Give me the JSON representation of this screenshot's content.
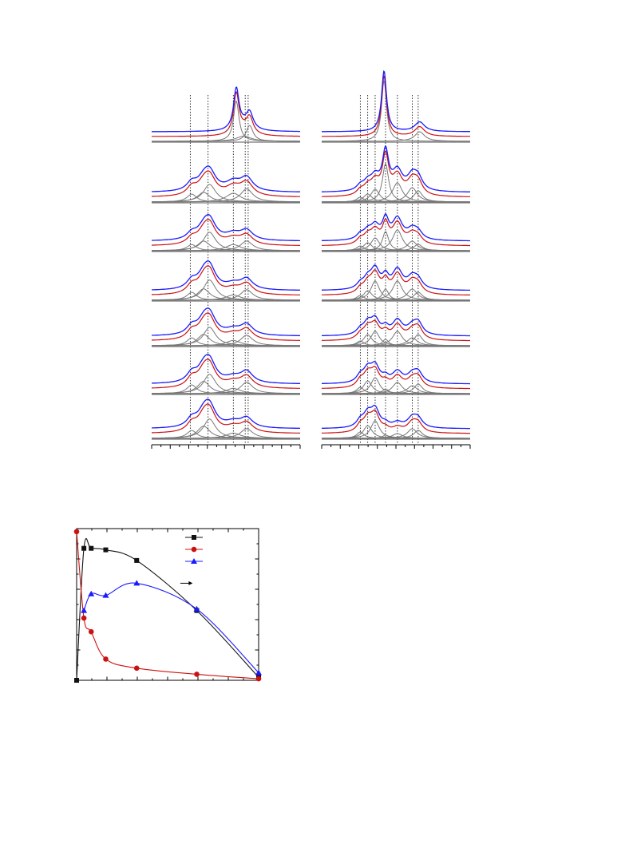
{
  "page": {
    "background": "#ffffff"
  },
  "colors": {
    "fit_envelope": "#1a1aff",
    "experimental": "#cc1111",
    "components": "#777777",
    "guide_lines": "#000000",
    "series": [
      "#111111",
      "#cc1111",
      "#1a1aff"
    ]
  },
  "chart_data": [
    {
      "type": "line",
      "panel": "left",
      "grid": false,
      "xlim": [
        0,
        100
      ],
      "ylim": [
        0,
        8
      ],
      "curves": [
        "fit_envelope",
        "experimental",
        "components"
      ],
      "marker_lines": [
        26,
        38,
        55,
        63,
        65
      ],
      "spectra": [
        {
          "peaks": [
            [
              57,
              2.3,
              2.2
            ],
            [
              66,
              0.9,
              2.8
            ],
            [
              62,
              0.3,
              6
            ]
          ]
        },
        {
          "peaks": [
            [
              27,
              0.45,
              4
            ],
            [
              35,
              0.55,
              5
            ],
            [
              39,
              1.0,
              5
            ],
            [
              55,
              0.5,
              6
            ],
            [
              64,
              0.75,
              5
            ]
          ]
        },
        {
          "peaks": [
            [
              27,
              0.35,
              4
            ],
            [
              35,
              0.55,
              5
            ],
            [
              39,
              1.05,
              5
            ],
            [
              55,
              0.35,
              6
            ],
            [
              64,
              0.55,
              5
            ]
          ]
        },
        {
          "peaks": [
            [
              27,
              0.45,
              4
            ],
            [
              35,
              0.65,
              5
            ],
            [
              39,
              1.15,
              5
            ],
            [
              55,
              0.3,
              6
            ],
            [
              64,
              0.6,
              5
            ]
          ]
        },
        {
          "peaks": [
            [
              27,
              0.45,
              4
            ],
            [
              35,
              0.65,
              5
            ],
            [
              39,
              1.05,
              5
            ],
            [
              55,
              0.3,
              6
            ],
            [
              64,
              0.6,
              5
            ]
          ]
        },
        {
          "peaks": [
            [
              27,
              0.5,
              4
            ],
            [
              35,
              0.7,
              5
            ],
            [
              39,
              1.1,
              5
            ],
            [
              55,
              0.3,
              6
            ],
            [
              64,
              0.65,
              5
            ]
          ]
        },
        {
          "peaks": [
            [
              27,
              0.45,
              4
            ],
            [
              35,
              0.7,
              5
            ],
            [
              39,
              1.1,
              5
            ],
            [
              55,
              0.3,
              6
            ],
            [
              64,
              0.55,
              5
            ]
          ]
        }
      ]
    },
    {
      "type": "line",
      "panel": "right",
      "grid": false,
      "xlim": [
        0,
        100
      ],
      "ylim": [
        0,
        8
      ],
      "curves": [
        "fit_envelope",
        "experimental",
        "components"
      ],
      "marker_lines": [
        26,
        31,
        36,
        43,
        51,
        61,
        65
      ],
      "spectra": [
        {
          "peaks": [
            [
              42,
              3.8,
              2.0
            ],
            [
              66,
              0.6,
              4
            ]
          ]
        },
        {
          "peaks": [
            [
              26,
              0.3,
              3
            ],
            [
              31,
              0.5,
              3.5
            ],
            [
              36,
              0.8,
              3.5
            ],
            [
              43,
              2.4,
              2.5
            ],
            [
              51,
              1.2,
              4
            ],
            [
              61,
              0.9,
              4
            ],
            [
              65,
              0.7,
              3.5
            ]
          ]
        },
        {
          "peaks": [
            [
              26,
              0.3,
              3
            ],
            [
              31,
              0.5,
              3.5
            ],
            [
              36,
              0.8,
              3.5
            ],
            [
              43,
              1.2,
              2.5
            ],
            [
              51,
              1.3,
              4
            ],
            [
              61,
              0.6,
              4
            ],
            [
              65,
              0.4,
              3.5
            ]
          ]
        },
        {
          "peaks": [
            [
              26,
              0.3,
              3
            ],
            [
              31,
              0.6,
              3.5
            ],
            [
              36,
              1.2,
              3.5
            ],
            [
              43,
              0.7,
              2.5
            ],
            [
              51,
              1.2,
              4
            ],
            [
              61,
              0.7,
              4
            ],
            [
              65,
              0.5,
              3.5
            ]
          ]
        },
        {
          "peaks": [
            [
              26,
              0.3,
              3
            ],
            [
              31,
              0.7,
              3.5
            ],
            [
              36,
              0.9,
              3.5
            ],
            [
              43,
              0.4,
              2.5
            ],
            [
              51,
              0.9,
              4
            ],
            [
              61,
              0.5,
              4
            ],
            [
              65,
              0.7,
              3.5
            ]
          ]
        },
        {
          "peaks": [
            [
              26,
              0.4,
              3
            ],
            [
              31,
              0.8,
              3.5
            ],
            [
              36,
              1.0,
              3.5
            ],
            [
              43,
              0.3,
              2.5
            ],
            [
              51,
              0.7,
              4
            ],
            [
              61,
              0.5,
              4
            ],
            [
              65,
              0.6,
              3.5
            ]
          ]
        },
        {
          "peaks": [
            [
              26,
              0.4,
              3
            ],
            [
              31,
              0.8,
              3.5
            ],
            [
              36,
              1.1,
              3.5
            ],
            [
              43,
              0.2,
              2.5
            ],
            [
              51,
              0.3,
              4
            ],
            [
              61,
              0.6,
              4
            ],
            [
              65,
              0.5,
              3.5
            ]
          ]
        }
      ]
    },
    {
      "type": "scatter",
      "panel": "bottom",
      "grid": false,
      "xlim": [
        0,
        100
      ],
      "ylim": [
        0,
        100
      ],
      "legend": "top-right",
      "series": [
        {
          "marker": "square",
          "color": "#111111",
          "x": [
            0,
            4,
            8,
            16,
            33,
            66,
            100
          ],
          "y": [
            0,
            87,
            87,
            86,
            79,
            46,
            2
          ]
        },
        {
          "marker": "circle",
          "color": "#cc1111",
          "x": [
            0,
            4,
            8,
            16,
            33,
            66,
            100
          ],
          "y": [
            98,
            41,
            32,
            14,
            8,
            4,
            1
          ]
        },
        {
          "marker": "triangle",
          "color": "#1a1aff",
          "x": [
            4,
            8,
            16,
            33,
            66,
            100
          ],
          "y": [
            46,
            57,
            56,
            64,
            47,
            5
          ]
        }
      ],
      "annotation_arrow": {
        "from": [
          57,
          64
        ],
        "to": [
          62,
          64
        ]
      }
    }
  ]
}
